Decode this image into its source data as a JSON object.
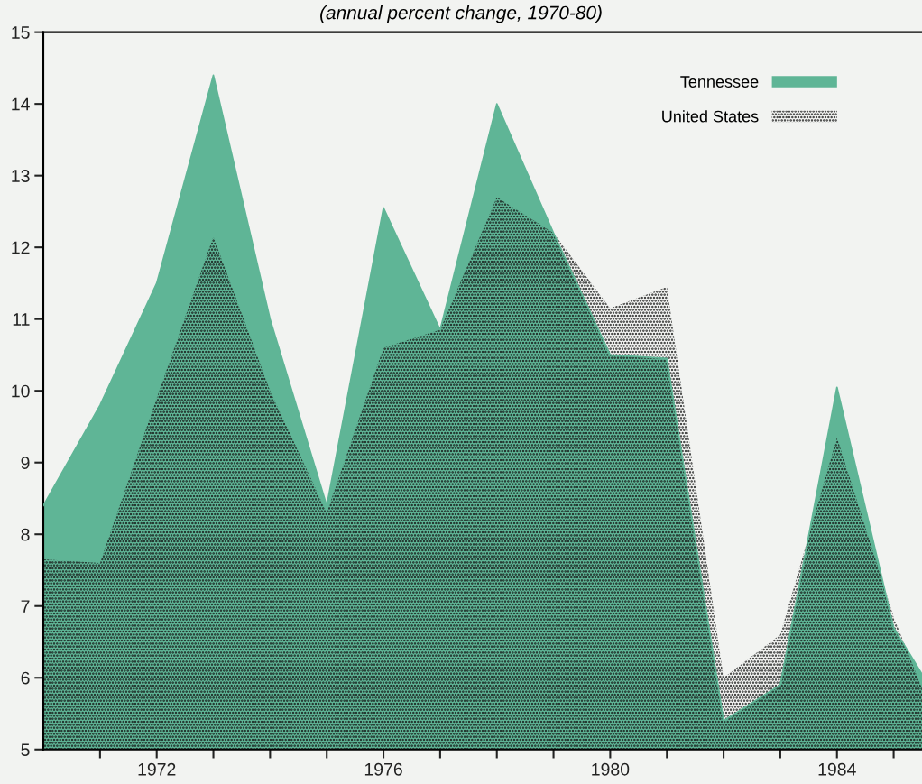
{
  "chart_data": {
    "type": "area",
    "subtitle": "(annual percent change, 1970-80)",
    "x": [
      1970,
      1971,
      1972,
      1973,
      1974,
      1975,
      1976,
      1977,
      1978,
      1979,
      1980,
      1981,
      1982,
      1983,
      1984,
      1985,
      1985.5
    ],
    "series": [
      {
        "name": "Tennessee",
        "color": "#5fb596",
        "values": [
          8.4,
          9.8,
          11.5,
          14.4,
          11.0,
          8.4,
          12.55,
          10.85,
          14.0,
          12.2,
          10.5,
          10.45,
          5.4,
          5.9,
          10.05,
          6.7,
          6.05
        ]
      },
      {
        "name": "United States",
        "color": "#111111",
        "values": [
          7.65,
          7.6,
          9.9,
          12.15,
          10.0,
          8.3,
          10.6,
          10.85,
          12.7,
          12.2,
          11.15,
          11.45,
          6.0,
          6.6,
          9.35,
          6.85,
          5.85
        ]
      }
    ],
    "xlim": [
      1970,
      1985.5
    ],
    "ylim": [
      5,
      15
    ],
    "xticks": [
      {
        "value": 1971,
        "label": null
      },
      1972,
      {
        "value": 1973,
        "label": null
      },
      {
        "value": 1974,
        "label": null
      },
      {
        "value": 1975,
        "label": null
      },
      1976,
      {
        "value": 1977,
        "label": null
      },
      {
        "value": 1978,
        "label": null
      },
      {
        "value": 1979,
        "label": null
      },
      1980,
      {
        "value": 1981,
        "label": null
      },
      {
        "value": 1982,
        "label": null
      },
      {
        "value": 1983,
        "label": null
      },
      1984,
      {
        "value": 1985,
        "label": null
      }
    ],
    "yticks": [
      5,
      6,
      7,
      8,
      9,
      10,
      11,
      12,
      13,
      14,
      15
    ],
    "legend": "top right",
    "grid": false
  }
}
